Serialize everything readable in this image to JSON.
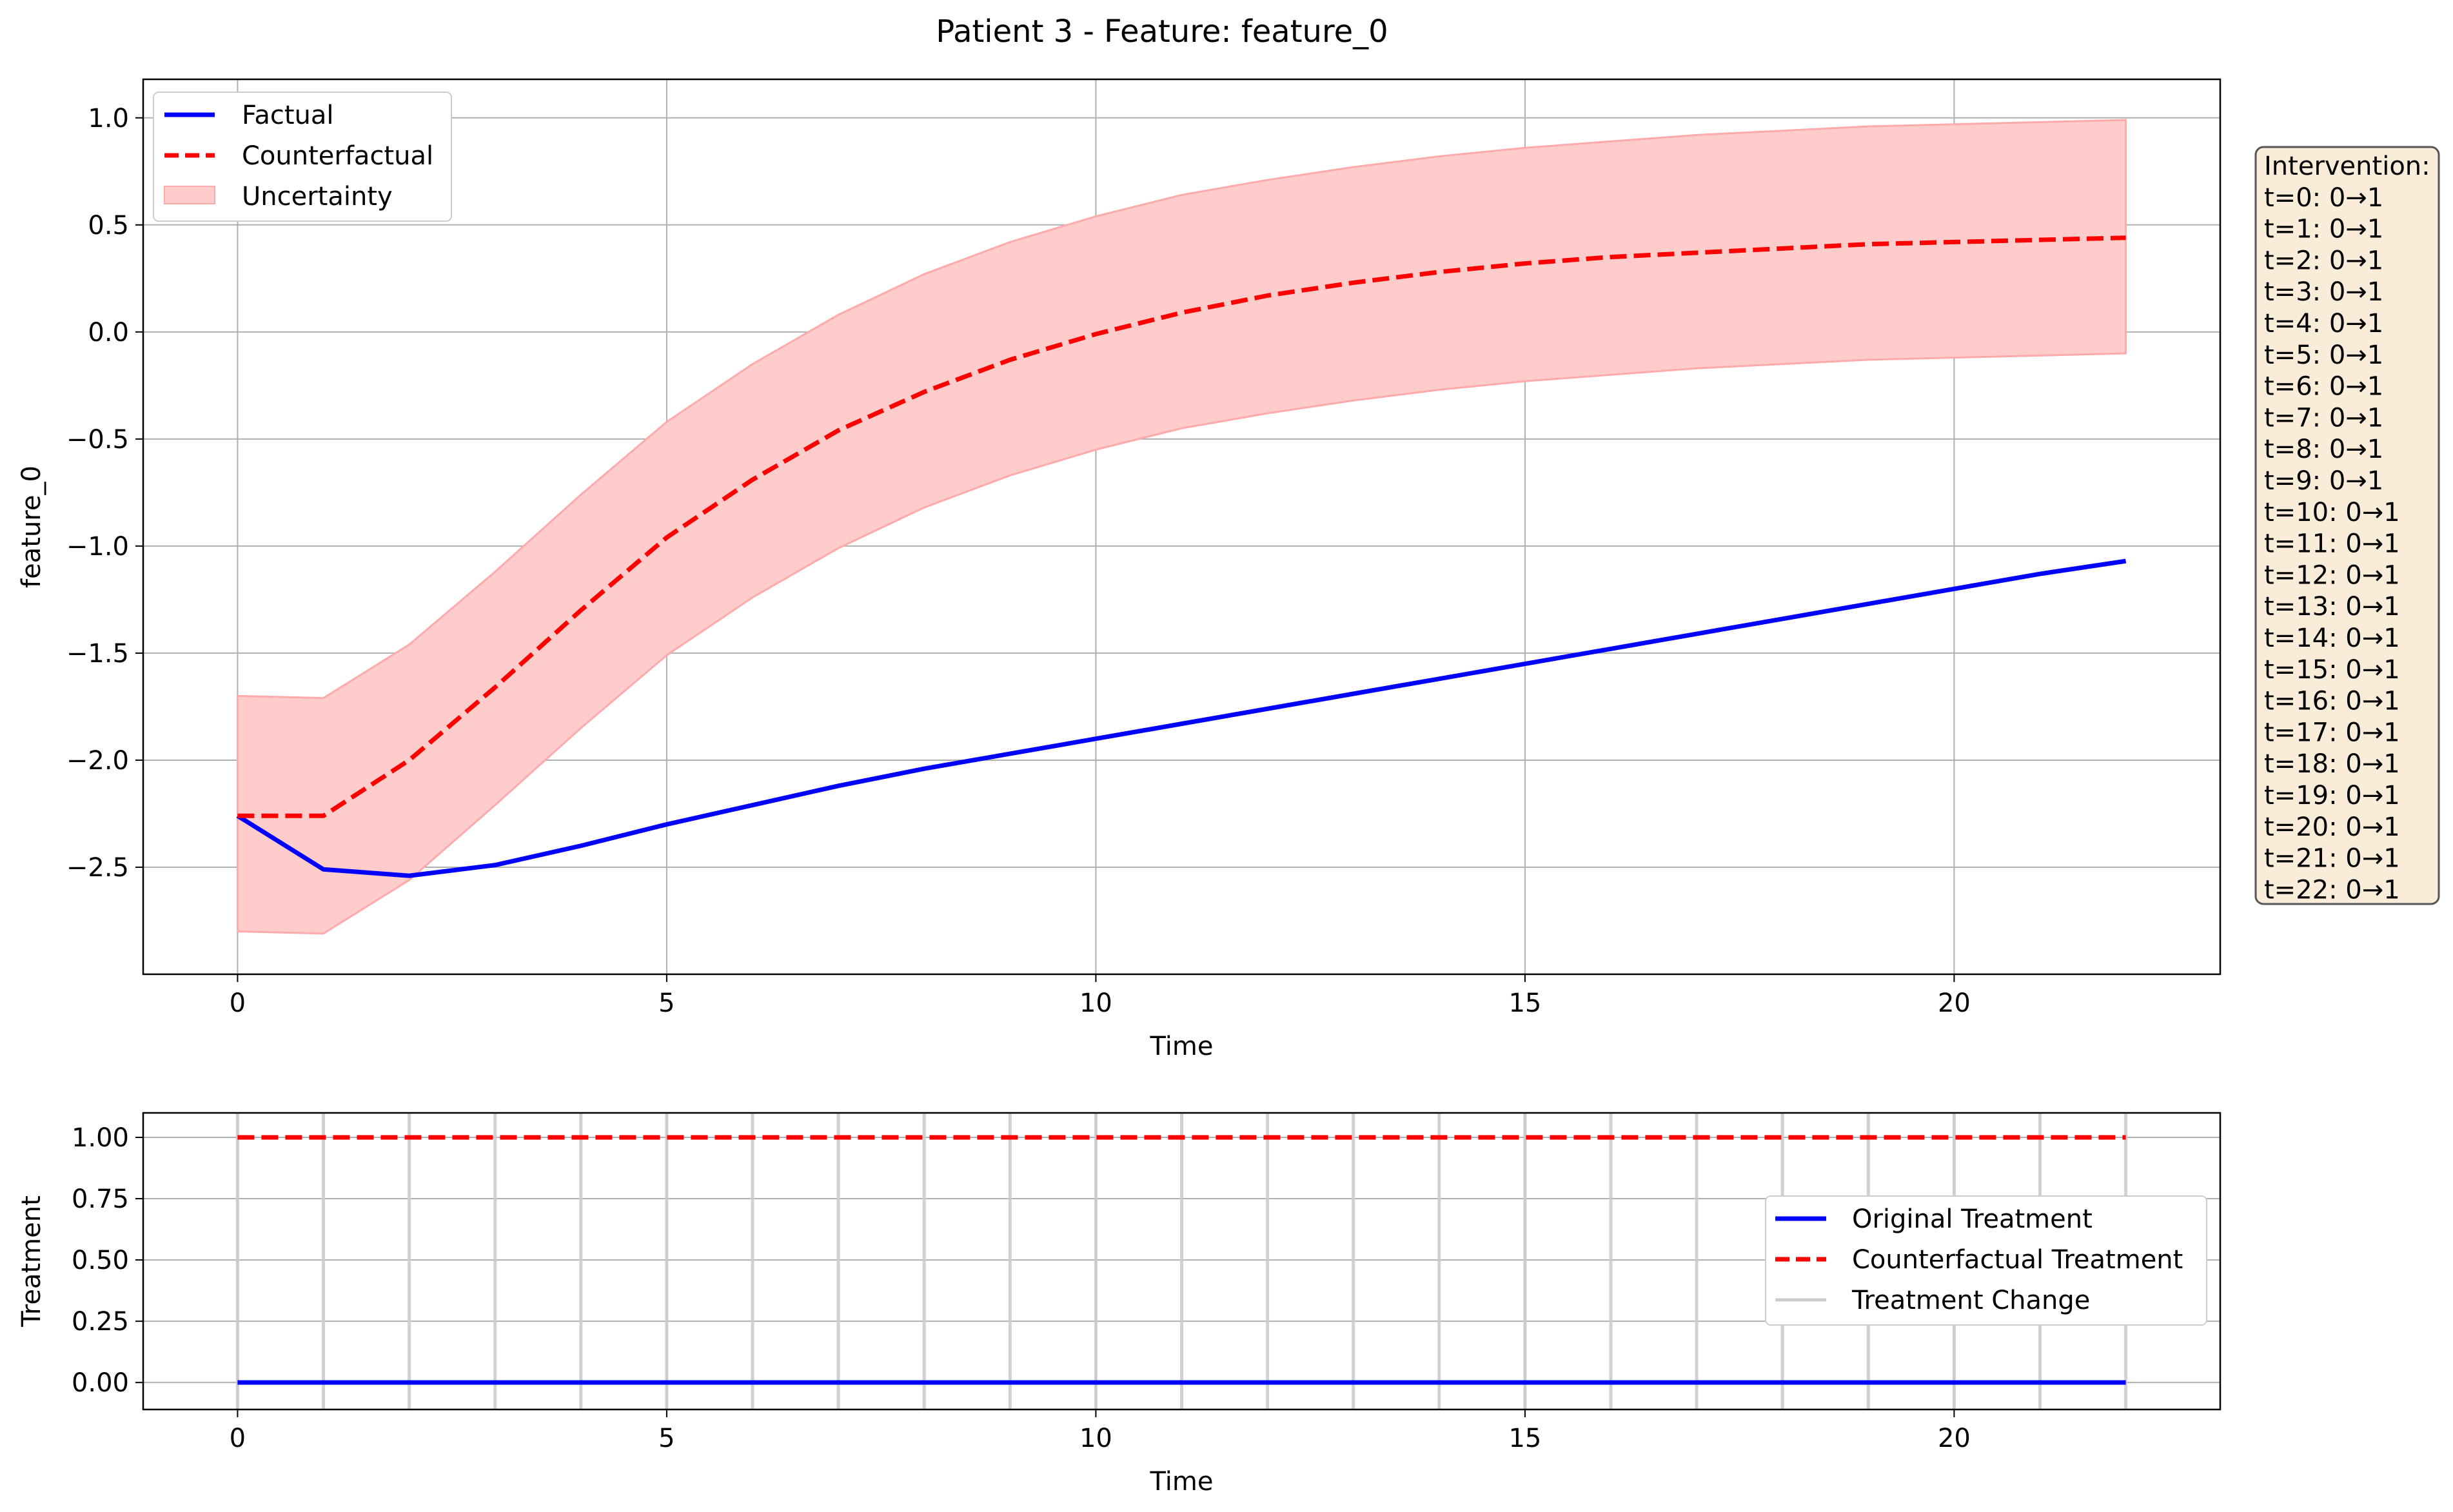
{
  "figure_title": "Patient 3 - Feature: feature_0",
  "colors": {
    "factual": "#0000ff",
    "counterfactual": "#ff0000",
    "uncertainty_fill": "#ffcccc",
    "uncertainty_edge": "#ffaaaa",
    "treatment_change": "#cccccc",
    "grid": "#b0b0b0",
    "annotation_bg": "#f9ecd8",
    "annotation_border": "#555555"
  },
  "annotation": {
    "lines": [
      "Intervention:",
      "t=0: 0→1",
      "t=1: 0→1",
      "t=2: 0→1",
      "t=3: 0→1",
      "t=4: 0→1",
      "t=5: 0→1",
      "t=6: 0→1",
      "t=7: 0→1",
      "t=8: 0→1",
      "t=9: 0→1",
      "t=10: 0→1",
      "t=11: 0→1",
      "t=12: 0→1",
      "t=13: 0→1",
      "t=14: 0→1",
      "t=15: 0→1",
      "t=16: 0→1",
      "t=17: 0→1",
      "t=18: 0→1",
      "t=19: 0→1",
      "t=20: 0→1",
      "t=21: 0→1",
      "t=22: 0→1"
    ]
  },
  "chart_data": [
    {
      "type": "line",
      "xlabel": "Time",
      "ylabel": "feature_0",
      "xlim": [
        -1.1,
        23.1
      ],
      "ylim": [
        -3.0,
        1.18
      ],
      "xticks": [
        0,
        5,
        10,
        15,
        20
      ],
      "yticks": [
        1.0,
        0.5,
        0.0,
        -0.5,
        -1.0,
        -1.5,
        -2.0,
        -2.5
      ],
      "ytick_labels": [
        "1.0",
        "0.5",
        "0.0",
        "−0.5",
        "−1.0",
        "−1.5",
        "−2.0",
        "−2.5"
      ],
      "grid": true,
      "legend_position": "top-left",
      "x": [
        0,
        1,
        2,
        3,
        4,
        5,
        6,
        7,
        8,
        9,
        10,
        11,
        12,
        13,
        14,
        15,
        16,
        17,
        18,
        19,
        20,
        21,
        22
      ],
      "series": [
        {
          "name": "Factual",
          "style": "solid",
          "values": [
            -2.26,
            -2.51,
            -2.54,
            -2.49,
            -2.4,
            -2.3,
            -2.21,
            -2.12,
            -2.04,
            -1.97,
            -1.9,
            -1.83,
            -1.76,
            -1.69,
            -1.62,
            -1.55,
            -1.48,
            -1.41,
            -1.34,
            -1.27,
            -1.2,
            -1.13,
            -1.07
          ]
        },
        {
          "name": "Counterfactual",
          "style": "dashed",
          "values": [
            -2.26,
            -2.26,
            -2.0,
            -1.66,
            -1.3,
            -0.96,
            -0.69,
            -0.46,
            -0.28,
            -0.13,
            -0.01,
            0.09,
            0.17,
            0.23,
            0.28,
            0.32,
            0.35,
            0.37,
            0.39,
            0.41,
            0.42,
            0.43,
            0.44
          ]
        }
      ],
      "band": {
        "name": "Uncertainty",
        "upper": [
          -1.7,
          -1.71,
          -1.46,
          -1.12,
          -0.76,
          -0.42,
          -0.15,
          0.08,
          0.27,
          0.42,
          0.54,
          0.64,
          0.71,
          0.77,
          0.82,
          0.86,
          0.89,
          0.92,
          0.94,
          0.96,
          0.97,
          0.98,
          0.99
        ],
        "lower": [
          -2.8,
          -2.81,
          -2.56,
          -2.21,
          -1.85,
          -1.51,
          -1.24,
          -1.01,
          -0.82,
          -0.67,
          -0.55,
          -0.45,
          -0.38,
          -0.32,
          -0.27,
          -0.23,
          -0.2,
          -0.17,
          -0.15,
          -0.13,
          -0.12,
          -0.11,
          -0.1
        ]
      }
    },
    {
      "type": "line",
      "xlabel": "Time",
      "ylabel": "Treatment",
      "xlim": [
        -1.1,
        23.1
      ],
      "ylim": [
        -0.11,
        1.1
      ],
      "xticks": [
        0,
        5,
        10,
        15,
        20
      ],
      "yticks": [
        1.0,
        0.75,
        0.5,
        0.25,
        0.0
      ],
      "ytick_labels": [
        "1.00",
        "0.75",
        "0.50",
        "0.25",
        "0.00"
      ],
      "grid": true,
      "legend_position": "center-right",
      "x": [
        0,
        1,
        2,
        3,
        4,
        5,
        6,
        7,
        8,
        9,
        10,
        11,
        12,
        13,
        14,
        15,
        16,
        17,
        18,
        19,
        20,
        21,
        22
      ],
      "series": [
        {
          "name": "Original Treatment",
          "style": "solid",
          "values": [
            0,
            0,
            0,
            0,
            0,
            0,
            0,
            0,
            0,
            0,
            0,
            0,
            0,
            0,
            0,
            0,
            0,
            0,
            0,
            0,
            0,
            0,
            0
          ]
        },
        {
          "name": "Counterfactual Treatment",
          "style": "dashed",
          "values": [
            1,
            1,
            1,
            1,
            1,
            1,
            1,
            1,
            1,
            1,
            1,
            1,
            1,
            1,
            1,
            1,
            1,
            1,
            1,
            1,
            1,
            1,
            1
          ]
        }
      ],
      "change_lines": {
        "name": "Treatment Change",
        "x": [
          0,
          1,
          2,
          3,
          4,
          5,
          6,
          7,
          8,
          9,
          10,
          11,
          12,
          13,
          14,
          15,
          16,
          17,
          18,
          19,
          20,
          21,
          22
        ]
      }
    }
  ]
}
